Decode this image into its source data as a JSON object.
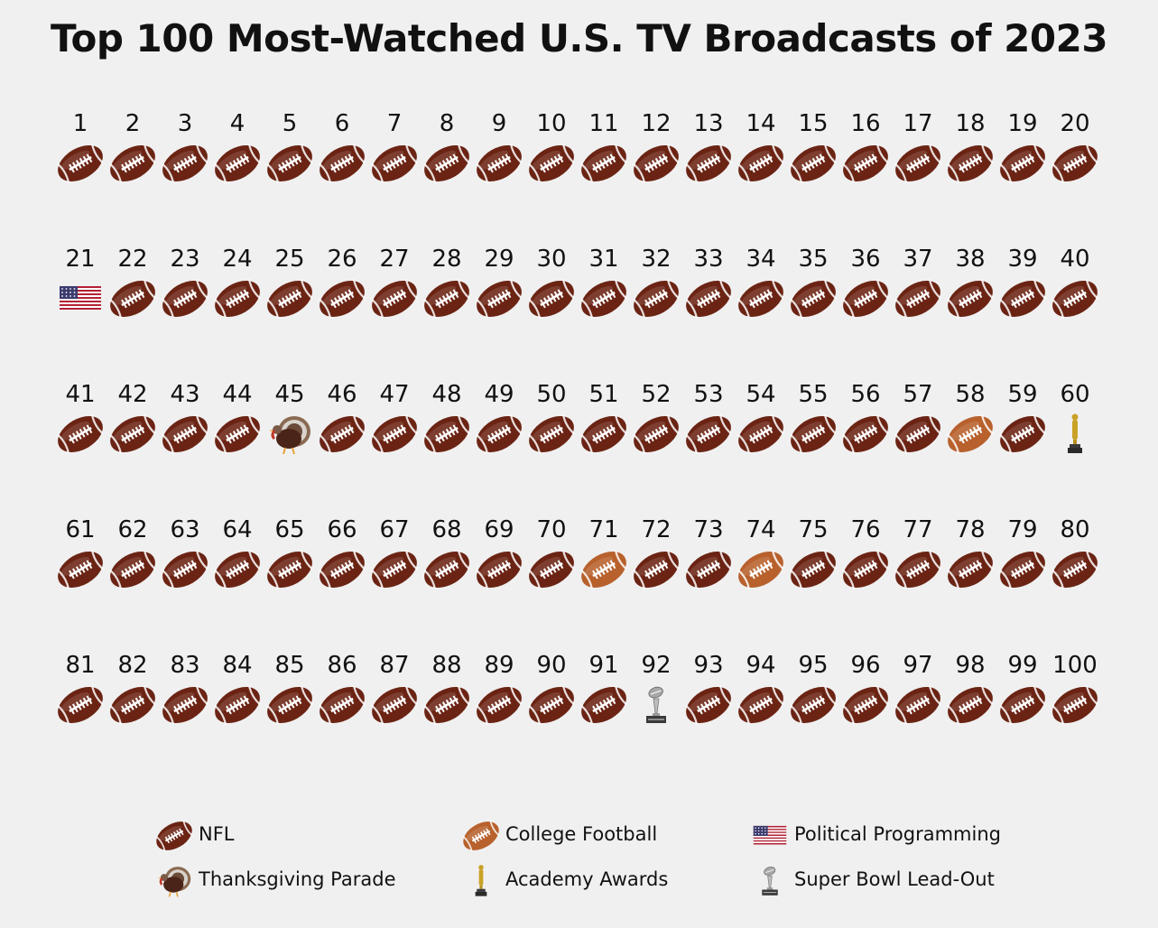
{
  "title": "Top 100 Most-Watched U.S. TV Broadcasts of 2023",
  "colors": {
    "nfl": "#6b2414",
    "college_football": "#b8612d",
    "political": "#b22234",
    "thanksgiving": "#4a2418",
    "academy": "#c9a227",
    "superbowl": "#a8a8a8"
  },
  "legend": [
    {
      "key": "nfl",
      "icon": "football-icon",
      "label": "NFL"
    },
    {
      "key": "college_football",
      "icon": "college-football-icon",
      "label": "College Football"
    },
    {
      "key": "political",
      "icon": "us-flag-icon",
      "label": "Political Programming"
    },
    {
      "key": "thanksgiving",
      "icon": "turkey-icon",
      "label": "Thanksgiving Parade"
    },
    {
      "key": "academy",
      "icon": "oscar-statuette-icon",
      "label": "Academy Awards"
    },
    {
      "key": "superbowl",
      "icon": "trophy-icon",
      "label": "Super Bowl Lead-Out"
    }
  ],
  "chart_data": {
    "type": "pictogram",
    "title": "Top 100 Most-Watched U.S. TV Broadcasts of 2023",
    "columns": 20,
    "rows": 5,
    "categories": [
      "NFL",
      "College Football",
      "Political Programming",
      "Thanksgiving Parade",
      "Academy Awards",
      "Super Bowl Lead-Out"
    ],
    "default_category": "nfl",
    "exceptions": {
      "21": "political",
      "45": "thanksgiving",
      "58": "college_football",
      "60": "academy",
      "71": "college_football",
      "74": "college_football",
      "92": "superbowl"
    },
    "counts": {
      "NFL": 93,
      "College Football": 3,
      "Political Programming": 1,
      "Thanksgiving Parade": 1,
      "Academy Awards": 1,
      "Super Bowl Lead-Out": 1
    }
  }
}
